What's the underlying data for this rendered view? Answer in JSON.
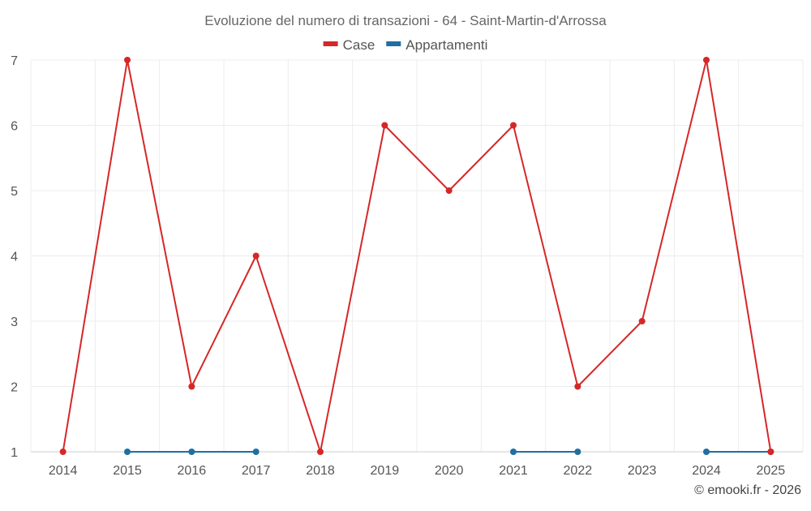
{
  "chart_data": {
    "type": "line",
    "title": "Evoluzione del numero di transazioni - 64 - Saint-Martin-d'Arrossa",
    "xlabel": "",
    "ylabel": "",
    "categories": [
      "2014",
      "2015",
      "2016",
      "2017",
      "2018",
      "2019",
      "2020",
      "2021",
      "2022",
      "2023",
      "2024",
      "2025"
    ],
    "ylim": [
      1,
      7
    ],
    "yticks": [
      "1",
      "2",
      "3",
      "4",
      "5",
      "6",
      "7"
    ],
    "grid": true,
    "legend_position": "top-center",
    "series": [
      {
        "name": "Case",
        "color": "#d62728",
        "values": [
          1,
          7,
          2,
          4,
          1,
          6,
          5,
          6,
          2,
          3,
          7,
          1
        ]
      },
      {
        "name": "Appartamenti",
        "color": "#1f6fa3",
        "values": [
          null,
          1,
          1,
          1,
          null,
          null,
          null,
          1,
          1,
          null,
          1,
          1
        ]
      }
    ]
  },
  "credit": "© emooki.fr - 2026"
}
